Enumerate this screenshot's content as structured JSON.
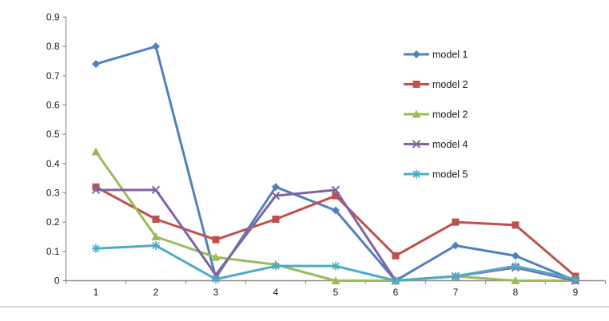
{
  "chart_data": {
    "type": "line",
    "title": "",
    "xlabel": "",
    "ylabel": "",
    "x": [
      1,
      2,
      3,
      4,
      5,
      6,
      7,
      8,
      9
    ],
    "xticks": [
      "1",
      "2",
      "3",
      "4",
      "5",
      "6",
      "7",
      "8",
      "9"
    ],
    "yticks": [
      "0",
      "0.1",
      "0.2",
      "0.3",
      "0.4",
      "0.5",
      "0.6",
      "0.7",
      "0.8",
      "0.9"
    ],
    "ylim": [
      0,
      0.9
    ],
    "ytick_step": 0.1,
    "grid": false,
    "legend_position": "inside-right",
    "series": [
      {
        "name": "model 1",
        "color": "#4F81BD",
        "marker": "diamond",
        "values": [
          0.74,
          0.8,
          0.01,
          0.32,
          0.24,
          0.0,
          0.12,
          0.085,
          0.0
        ]
      },
      {
        "name": "model 2",
        "color": "#C0504D",
        "marker": "square",
        "values": [
          0.32,
          0.21,
          0.14,
          0.21,
          0.29,
          0.085,
          0.2,
          0.19,
          0.015
        ]
      },
      {
        "name": "model 2",
        "color": "#9BBB59",
        "marker": "triangle",
        "values": [
          0.44,
          0.15,
          0.08,
          0.055,
          0.0,
          0.0,
          0.015,
          0.0,
          0.0
        ]
      },
      {
        "name": "model 4",
        "color": "#8064A2",
        "marker": "x",
        "values": [
          0.31,
          0.31,
          0.02,
          0.29,
          0.31,
          0.0,
          0.015,
          0.045,
          0.0
        ]
      },
      {
        "name": "model 5",
        "color": "#4BACC6",
        "marker": "asterisk",
        "values": [
          0.11,
          0.12,
          0.005,
          0.05,
          0.05,
          0.0,
          0.015,
          0.05,
          0.005
        ]
      }
    ]
  },
  "colors": {
    "background": "#FFFFFF",
    "axis": "#8C8C8C",
    "tick_text": "#1A1A1A",
    "legend_text": "#1A1A1A",
    "bottom_divider": "#C9C9C9"
  }
}
